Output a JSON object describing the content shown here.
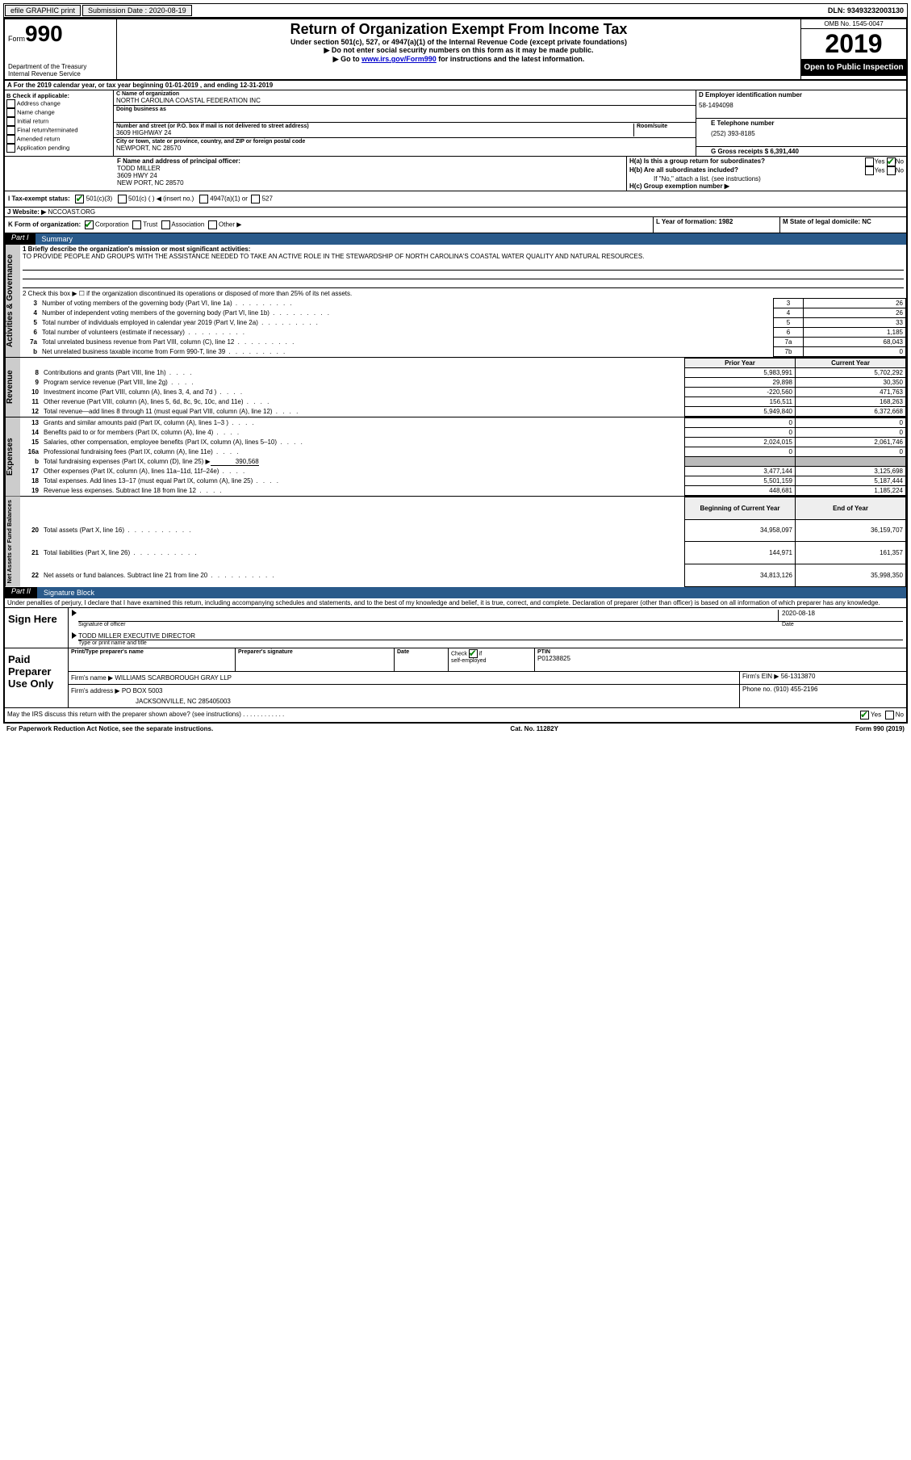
{
  "topbar": {
    "efile": "efile GRAPHIC print",
    "submission_label": "Submission Date : 2020-08-19",
    "dln": "DLN: 93493232003130"
  },
  "header": {
    "form_label": "Form",
    "form_num": "990",
    "dept1": "Department of the Treasury",
    "dept2": "Internal Revenue Service",
    "title": "Return of Organization Exempt From Income Tax",
    "sub1": "Under section 501(c), 527, or 4947(a)(1) of the Internal Revenue Code (except private foundations)",
    "sub2": "▶ Do not enter social security numbers on this form as it may be made public.",
    "sub3a": "▶ Go to ",
    "sub3_link": "www.irs.gov/Form990",
    "sub3b": " for instructions and the latest information.",
    "omb": "OMB No. 1545-0047",
    "year": "2019",
    "open": "Open to Public Inspection"
  },
  "line_a": "A  For the 2019 calendar year, or tax year beginning 01-01-2019   , and ending 12-31-2019",
  "section_b": {
    "title": "B Check if applicable:",
    "opts": [
      "Address change",
      "Name change",
      "Initial return",
      "Final return/terminated",
      "Amended return",
      "Application pending"
    ],
    "c_label": "C Name of organization",
    "org_name": "NORTH CAROLINA COASTAL FEDERATION INC",
    "dba_label": "Doing business as",
    "addr_label": "Number and street (or P.O. box if mail is not delivered to street address)",
    "addr": "3609 HIGHWAY 24",
    "room_label": "Room/suite",
    "city_label": "City or town, state or province, country, and ZIP or foreign postal code",
    "city": "NEWPORT, NC  28570",
    "f_label": "F  Name and address of principal officer:",
    "f_name": "TODD MILLER",
    "f_addr1": "3609 HWY 24",
    "f_addr2": "NEW PORT, NC  28570",
    "d_label": "D Employer identification number",
    "ein": "58-1494098",
    "e_label": "E Telephone number",
    "phone": "(252) 393-8185",
    "g_label": "G Gross receipts $ 6,391,440",
    "ha_label": "H(a)  Is this a group return for subordinates?",
    "hb_label": "H(b)  Are all subordinates included?",
    "hb_note": "If \"No,\" attach a list. (see instructions)",
    "hc_label": "H(c)  Group exemption number ▶",
    "yes": "Yes",
    "no": "No"
  },
  "tax_status": {
    "i_label": "I  Tax-exempt status:",
    "opt1": "501(c)(3)",
    "opt2": "501(c) (   ) ◀ (insert no.)",
    "opt3": "4947(a)(1) or",
    "opt4": "527"
  },
  "website": {
    "j_label": "J  Website: ▶",
    "url": "NCCOAST.ORG"
  },
  "line_k": {
    "label": "K Form of organization:",
    "corp": "Corporation",
    "trust": "Trust",
    "assoc": "Association",
    "other": "Other ▶",
    "l_label": "L Year of formation: 1982",
    "m_label": "M State of legal domicile: NC"
  },
  "part1": {
    "label": "Part I",
    "title": "Summary",
    "q1": "1  Briefly describe the organization's mission or most significant activities:",
    "mission": "TO PROVIDE PEOPLE AND GROUPS WITH THE ASSISTANCE NEEDED TO TAKE AN ACTIVE ROLE IN THE STEWARDSHIP OF NORTH CAROLINA'S COASTAL WATER QUALITY AND NATURAL RESOURCES.",
    "q2": "2  Check this box ▶ ☐  if the organization discontinued its operations or disposed of more than 25% of its net assets.",
    "side_gov": "Activities & Governance",
    "side_rev": "Revenue",
    "side_exp": "Expenses",
    "side_net": "Net Assets or Fund Balances",
    "rows_gov": [
      {
        "n": "3",
        "ln": "3",
        "desc": "Number of voting members of the governing body (Part VI, line 1a)",
        "v": "26"
      },
      {
        "n": "4",
        "ln": "4",
        "desc": "Number of independent voting members of the governing body (Part VI, line 1b)",
        "v": "26"
      },
      {
        "n": "5",
        "ln": "5",
        "desc": "Total number of individuals employed in calendar year 2019 (Part V, line 2a)",
        "v": "33"
      },
      {
        "n": "6",
        "ln": "6",
        "desc": "Total number of volunteers (estimate if necessary)",
        "v": "1,185"
      },
      {
        "n": "7a",
        "ln": "7a",
        "desc": "Total unrelated business revenue from Part VIII, column (C), line 12",
        "v": "68,043"
      },
      {
        "n": "b",
        "ln": "7b",
        "desc": "Net unrelated business taxable income from Form 990-T, line 39",
        "v": "0"
      }
    ],
    "col_prior": "Prior Year",
    "col_current": "Current Year",
    "rows_rev": [
      {
        "n": "8",
        "desc": "Contributions and grants (Part VIII, line 1h)",
        "p": "5,983,991",
        "c": "5,702,292"
      },
      {
        "n": "9",
        "desc": "Program service revenue (Part VIII, line 2g)",
        "p": "29,898",
        "c": "30,350"
      },
      {
        "n": "10",
        "desc": "Investment income (Part VIII, column (A), lines 3, 4, and 7d )",
        "p": "-220,560",
        "c": "471,763"
      },
      {
        "n": "11",
        "desc": "Other revenue (Part VIII, column (A), lines 5, 6d, 8c, 9c, 10c, and 11e)",
        "p": "156,511",
        "c": "168,263"
      },
      {
        "n": "12",
        "desc": "Total revenue—add lines 8 through 11 (must equal Part VIII, column (A), line 12)",
        "p": "5,949,840",
        "c": "6,372,668"
      }
    ],
    "rows_exp": [
      {
        "n": "13",
        "desc": "Grants and similar amounts paid (Part IX, column (A), lines 1–3 )",
        "p": "0",
        "c": "0"
      },
      {
        "n": "14",
        "desc": "Benefits paid to or for members (Part IX, column (A), line 4)",
        "p": "0",
        "c": "0"
      },
      {
        "n": "15",
        "desc": "Salaries, other compensation, employee benefits (Part IX, column (A), lines 5–10)",
        "p": "2,024,015",
        "c": "2,061,746"
      },
      {
        "n": "16a",
        "desc": "Professional fundraising fees (Part IX, column (A), line 11e)",
        "p": "0",
        "c": "0"
      }
    ],
    "row_16b": {
      "n": "b",
      "desc": "Total fundraising expenses (Part IX, column (D), line 25) ▶",
      "v": "390,568"
    },
    "rows_exp2": [
      {
        "n": "17",
        "desc": "Other expenses (Part IX, column (A), lines 11a–11d, 11f–24e)",
        "p": "3,477,144",
        "c": "3,125,698"
      },
      {
        "n": "18",
        "desc": "Total expenses. Add lines 13–17 (must equal Part IX, column (A), line 25)",
        "p": "5,501,159",
        "c": "5,187,444"
      },
      {
        "n": "19",
        "desc": "Revenue less expenses. Subtract line 18 from line 12",
        "p": "448,681",
        "c": "1,185,224"
      }
    ],
    "col_begin": "Beginning of Current Year",
    "col_end": "End of Year",
    "rows_net": [
      {
        "n": "20",
        "desc": "Total assets (Part X, line 16)",
        "p": "34,958,097",
        "c": "36,159,707"
      },
      {
        "n": "21",
        "desc": "Total liabilities (Part X, line 26)",
        "p": "144,971",
        "c": "161,357"
      },
      {
        "n": "22",
        "desc": "Net assets or fund balances. Subtract line 21 from line 20",
        "p": "34,813,126",
        "c": "35,998,350"
      }
    ]
  },
  "part2": {
    "label": "Part II",
    "title": "Signature Block",
    "penalty": "Under penalties of perjury, I declare that I have examined this return, including accompanying schedules and statements, and to the best of my knowledge and belief, it is true, correct, and complete. Declaration of preparer (other than officer) is based on all information of which preparer has any knowledge.",
    "sign_here": "Sign Here",
    "sig_officer": "Signature of officer",
    "sig_date": "Date",
    "sig_date_val": "2020-08-18",
    "officer_name": "TODD MILLER  EXECUTIVE DIRECTOR",
    "type_name": "Type or print name and title",
    "paid_prep": "Paid Preparer Use Only",
    "prep_name_label": "Print/Type preparer's name",
    "prep_sig_label": "Preparer's signature",
    "date_label": "Date",
    "check_self": "Check ☑ if self-employed",
    "ptin_label": "PTIN",
    "ptin": "P01238825",
    "firm_name_label": "Firm's name    ▶",
    "firm_name": "WILLIAMS SCARBOROUGH GRAY LLP",
    "firm_ein_label": "Firm's EIN ▶",
    "firm_ein": "56-1313870",
    "firm_addr_label": "Firm's address ▶",
    "firm_addr1": "PO BOX 5003",
    "firm_addr2": "JACKSONVILLE, NC  285405003",
    "phone_label": "Phone no. (910) 455-2196",
    "discuss": "May the IRS discuss this return with the preparer shown above? (see instructions)"
  },
  "footer": {
    "left": "For Paperwork Reduction Act Notice, see the separate instructions.",
    "mid": "Cat. No. 11282Y",
    "right": "Form 990 (2019)"
  }
}
